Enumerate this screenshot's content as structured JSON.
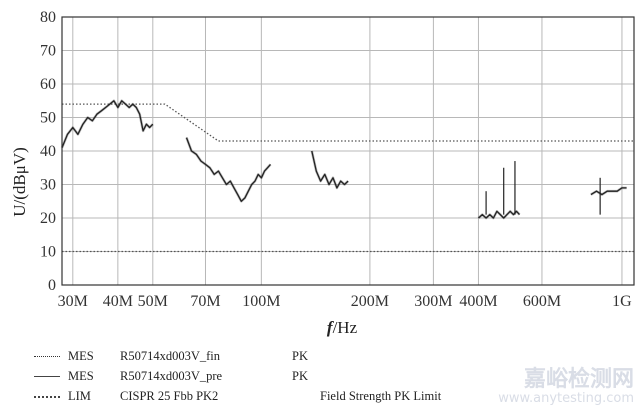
{
  "chart_data": {
    "type": "line",
    "ylabel": "U/(dBμV)",
    "xlabel_var": "f",
    "xlabel_unit": "/Hz",
    "ylim": [
      0,
      80
    ],
    "yticks": [
      0,
      10,
      20,
      30,
      40,
      50,
      60,
      70,
      80
    ],
    "xscale": "log",
    "xlim": [
      28000000,
      1080000000
    ],
    "xticks": [
      {
        "value": 30000000,
        "label": "30M"
      },
      {
        "value": 40000000,
        "label": "40M"
      },
      {
        "value": 50000000,
        "label": "50M"
      },
      {
        "value": 70000000,
        "label": "70M"
      },
      {
        "value": 100000000,
        "label": "100M"
      },
      {
        "value": 200000000,
        "label": "200M"
      },
      {
        "value": 300000000,
        "label": "300M"
      },
      {
        "value": 400000000,
        "label": "400M"
      },
      {
        "value": 600000000,
        "label": "600M"
      },
      {
        "value": 1000000000,
        "label": "1G"
      }
    ],
    "grid": true,
    "series": [
      {
        "name": "MES R50714xd003V_pre PK",
        "style": "solid",
        "segments": [
          {
            "x": [
              28,
              29,
              30,
              31,
              32,
              33,
              34,
              35,
              36,
              37,
              38,
              39,
              40,
              41,
              42,
              43,
              44,
              45,
              46,
              47,
              48,
              49,
              50
            ],
            "y": [
              41,
              45,
              47,
              45,
              48,
              50,
              49,
              51,
              52,
              53,
              54,
              55,
              53,
              55,
              54,
              53,
              54,
              53,
              51,
              46,
              48,
              47,
              48
            ]
          },
          {
            "x": [
              62,
              64,
              66,
              68,
              70,
              72,
              74,
              76,
              78,
              80,
              82,
              84,
              86,
              88,
              90,
              92,
              94,
              96,
              98,
              100,
              102,
              104,
              106
            ],
            "y": [
              44,
              40,
              39,
              37,
              36,
              35,
              33,
              34,
              32,
              30,
              31,
              29,
              27,
              25,
              26,
              28,
              30,
              31,
              33,
              32,
              34,
              35,
              36
            ]
          },
          {
            "x": [
              138,
              142,
              146,
              150,
              154,
              158,
              162,
              166,
              170,
              174
            ],
            "y": [
              40,
              34,
              31,
              33,
              30,
              32,
              29,
              31,
              30,
              31
            ]
          },
          {
            "x": [
              400,
              410,
              420,
              430,
              440,
              450,
              460,
              470,
              480,
              490,
              500,
              510,
              520
            ],
            "y": [
              20,
              21,
              20,
              21,
              20,
              22,
              21,
              20,
              21,
              22,
              21,
              22,
              21
            ]
          },
          {
            "x": [
              820,
              850,
              880,
              910,
              940,
              970,
              1000,
              1030
            ],
            "y": [
              27,
              28,
              27,
              28,
              28,
              28,
              29,
              29
            ]
          }
        ],
        "spikes": [
          {
            "x": 420,
            "y": 28
          },
          {
            "x": 470,
            "y": 35
          },
          {
            "x": 505,
            "y": 37
          },
          {
            "x": 870,
            "y": 32
          }
        ]
      },
      {
        "name": "LIM CISPR 25 Fbb PK2",
        "style": "dotted",
        "segments": [
          {
            "x": [
              28,
              54,
              76,
              1080
            ],
            "y": [
              54,
              54,
              43,
              43
            ]
          },
          {
            "x": [
              28,
              1080
            ],
            "y": [
              10,
              10
            ]
          }
        ]
      }
    ],
    "legend": [
      {
        "type": "MES",
        "name": "R50714xd003V_fin",
        "detector": "PK",
        "extra": "",
        "symbol": "marker"
      },
      {
        "type": "MES",
        "name": "R50714xd003V_pre",
        "detector": "PK",
        "extra": "",
        "symbol": "line"
      },
      {
        "type": "LIM",
        "name": "CISPR 25 Fbb PK2",
        "detector": "",
        "extra": "Field Strength PK Limit",
        "symbol": "dotted"
      }
    ],
    "legend_placement": "bottom"
  },
  "watermark": {
    "text": "嘉峪检测网",
    "url": "www.anytesting.com"
  }
}
